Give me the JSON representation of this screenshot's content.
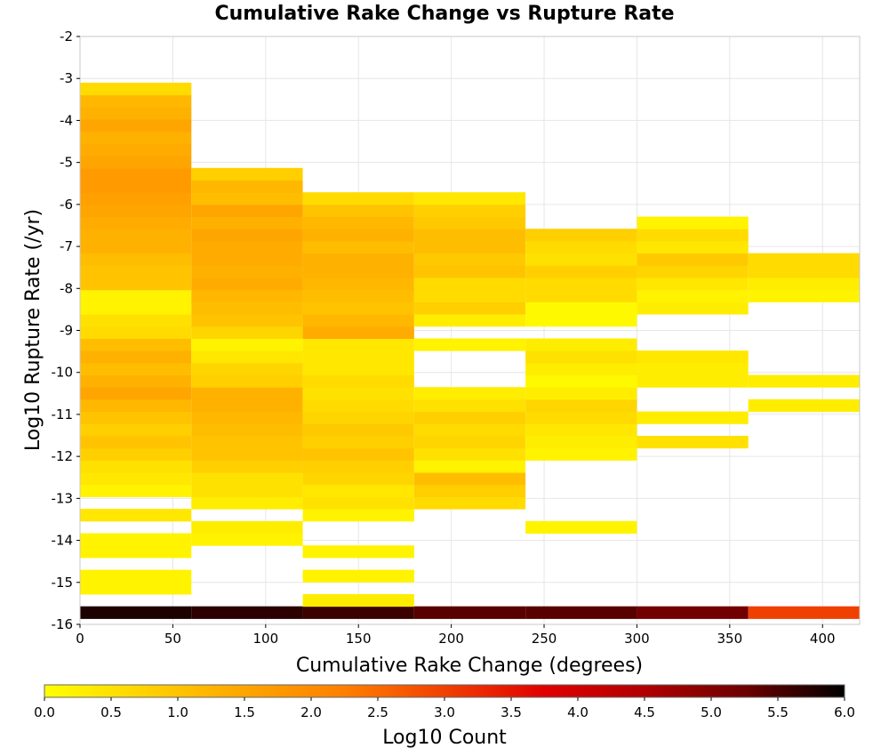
{
  "chart_data": {
    "type": "heatmap",
    "title": "Cumulative Rake Change vs Rupture Rate",
    "xlabel": "Cumulative Rake Change (degrees)",
    "ylabel": "Log10 Rupture Rate (/yr)",
    "xlim": [
      0,
      420
    ],
    "ylim": [
      -16,
      -2
    ],
    "xticks": [
      0,
      50,
      100,
      150,
      200,
      250,
      300,
      350,
      400
    ],
    "yticks": [
      -2,
      -3,
      -4,
      -5,
      -6,
      -7,
      -8,
      -9,
      -10,
      -11,
      -12,
      -13,
      -14,
      -15,
      -16
    ],
    "grid": true,
    "x_bin_width": 60,
    "y_bin_height": 0.29,
    "colorbar": {
      "label": "Log10 Count",
      "min": 0,
      "max": 6,
      "ticks": [
        "0.0",
        "0.5",
        "1.0",
        "1.5",
        "2.0",
        "2.5",
        "3.0",
        "3.5",
        "4.0",
        "4.5",
        "5.0",
        "5.5",
        "6.0"
      ],
      "colormap": [
        "#ffff00",
        "#ffd200",
        "#ffa500",
        "#ff7f00",
        "#f04000",
        "#e00000",
        "#b00000",
        "#6e0000",
        "#000000"
      ]
    },
    "columns": [
      {
        "x_start": 0,
        "y_start": -15.86,
        "values": [
          5.8,
          null,
          0.2,
          0.2,
          null,
          0.2,
          0.2,
          null,
          0.4,
          null,
          0.2,
          0.4,
          0.5,
          0.8,
          1.0,
          0.8,
          1.0,
          1.2,
          1.5,
          1.3,
          1.1,
          1.3,
          1.1,
          0.6,
          0.5,
          0.2,
          0.2,
          1.0,
          1.0,
          1.1,
          1.3,
          1.3,
          1.4,
          1.5,
          1.6,
          1.7,
          1.7,
          1.5,
          1.4,
          1.3,
          1.5,
          1.3,
          1.2,
          0.6
        ]
      },
      {
        "x_start": 60,
        "y_start": -15.86,
        "values": [
          5.7,
          null,
          null,
          null,
          null,
          null,
          0.2,
          0.3,
          null,
          0.3,
          0.5,
          0.5,
          0.8,
          1.0,
          1.0,
          1.1,
          1.2,
          1.3,
          1.3,
          0.8,
          0.7,
          0.4,
          0.2,
          0.7,
          1.0,
          1.1,
          1.2,
          1.4,
          1.3,
          1.4,
          1.4,
          1.5,
          1.3,
          1.5,
          1.1,
          1.2,
          0.8
        ]
      },
      {
        "x_start": 120,
        "y_start": -15.86,
        "values": [
          5.6,
          0.3,
          null,
          0.2,
          null,
          0.2,
          null,
          null,
          0.2,
          0.5,
          0.4,
          0.7,
          0.8,
          1.0,
          0.8,
          0.9,
          0.7,
          0.6,
          0.5,
          0.6,
          0.4,
          0.4,
          0.4,
          1.4,
          1.2,
          1.0,
          1.1,
          1.2,
          1.3,
          1.3,
          1.1,
          1.3,
          1.2,
          1.0,
          0.6
        ]
      },
      {
        "x_start": 180,
        "y_start": -15.86,
        "values": [
          5.4,
          null,
          null,
          null,
          null,
          null,
          null,
          null,
          null,
          0.6,
          0.8,
          1.1,
          0.2,
          0.5,
          0.7,
          0.6,
          0.8,
          0.5,
          0.3,
          null,
          null,
          null,
          0.2,
          null,
          0.3,
          0.8,
          0.6,
          0.6,
          1.0,
          0.9,
          1.1,
          1.1,
          0.9,
          0.8,
          0.4
        ]
      },
      {
        "x_start": 240,
        "y_start": -15.86,
        "values": [
          5.4,
          null,
          null,
          null,
          null,
          null,
          null,
          0.2,
          null,
          null,
          null,
          null,
          null,
          0.2,
          0.3,
          0.4,
          0.6,
          0.7,
          0.3,
          0.1,
          0.3,
          0.5,
          0.3,
          null,
          0.1,
          0.1,
          0.6,
          0.6,
          0.8,
          0.5,
          0.6,
          0.8
        ]
      },
      {
        "x_start": 300,
        "y_start": -15.86,
        "values": [
          5.2,
          null,
          null,
          null,
          null,
          null,
          null,
          null,
          null,
          null,
          null,
          null,
          null,
          null,
          0.5,
          null,
          0.3,
          null,
          null,
          0.3,
          0.3,
          0.4,
          null,
          null,
          null,
          0.3,
          0.2,
          0.4,
          0.7,
          0.9,
          0.4,
          0.6,
          0.2
        ]
      },
      {
        "x_start": 360,
        "y_start": -15.86,
        "values": [
          3.0,
          null,
          null,
          null,
          null,
          null,
          null,
          null,
          null,
          null,
          null,
          null,
          null,
          null,
          null,
          null,
          null,
          0.3,
          null,
          0.3,
          null,
          null,
          null,
          null,
          null,
          null,
          0.2,
          0.3,
          0.6,
          0.6
        ]
      }
    ]
  }
}
